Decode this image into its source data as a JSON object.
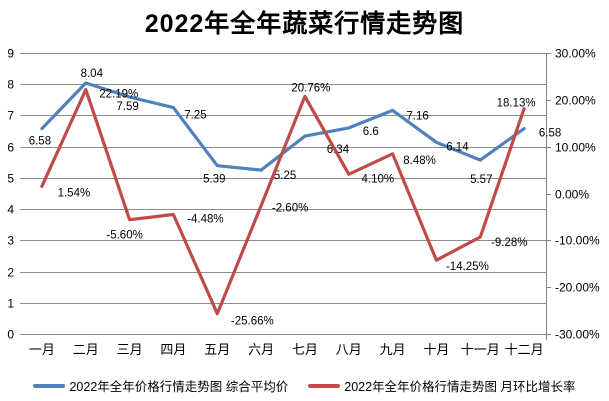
{
  "title": "2022年全年蔬菜行情走势图",
  "colors": {
    "series_price": "#4F81BD",
    "series_growth": "#BE4B48",
    "gridline": "#8C8C8C",
    "axis_line": "#808080",
    "text": "#000000"
  },
  "chart_data": {
    "type": "line",
    "title": "2022年全年蔬菜行情走势图",
    "categories": [
      "一月",
      "二月",
      "三月",
      "四月",
      "五月",
      "六月",
      "七月",
      "八月",
      "九月",
      "十月",
      "十一月",
      "十二月"
    ],
    "left_axis": {
      "min": 0,
      "max": 9,
      "tick_labels": [
        "9",
        "8",
        "7",
        "6",
        "5",
        "4",
        "3",
        "2",
        "1",
        "0"
      ]
    },
    "right_axis": {
      "min": -30,
      "max": 30,
      "tick_labels": [
        "30.00%",
        "20.00%",
        "10.00%",
        "0.00%",
        "-10.00%",
        "-20.00%",
        "-30.00%"
      ]
    },
    "grid": true,
    "legend_position": "bottom",
    "series": [
      {
        "name": "2022年全年价格行情走势图 综合平均价",
        "axis": "left",
        "color": "#4F81BD",
        "values": [
          6.58,
          8.04,
          7.59,
          7.25,
          5.39,
          5.25,
          6.34,
          6.6,
          7.16,
          6.14,
          5.57,
          6.58
        ],
        "labels": [
          "6.58",
          "8.04",
          "7.59",
          "7.25",
          "5.39",
          "5.25",
          "6.34",
          "6.6",
          "7.16",
          "6.14",
          "5.57",
          "6.58"
        ],
        "label_offsets": [
          [
            -2,
            16
          ],
          [
            6,
            -6
          ],
          [
            -2,
            13
          ],
          [
            22,
            11
          ],
          [
            -3,
            17
          ],
          [
            24,
            9
          ],
          [
            33,
            17
          ],
          [
            22,
            7
          ],
          [
            25,
            9
          ],
          [
            21,
            8
          ],
          [
            1,
            23
          ],
          [
            26,
            8
          ]
        ]
      },
      {
        "name": "2022年全年价格行情走势图 月环比增长率",
        "axis": "right",
        "color": "#BE4B48",
        "values": [
          1.54,
          22.19,
          -5.6,
          -4.48,
          -25.66,
          -2.6,
          20.76,
          4.1,
          8.48,
          -14.25,
          -9.28,
          18.13
        ],
        "labels": [
          "1.54%",
          "22.19%",
          "-5.60%",
          "-4.48%",
          "-25.66%",
          "-2.60%",
          "20.76%",
          "4.10%",
          "8.48%",
          "-14.25%",
          "-9.28%",
          "18.13%"
        ],
        "label_offsets": [
          [
            32,
            10
          ],
          [
            33,
            8
          ],
          [
            -5,
            19
          ],
          [
            32,
            8
          ],
          [
            35,
            11
          ],
          [
            29,
            6
          ],
          [
            6,
            -5
          ],
          [
            29,
            8
          ],
          [
            27,
            10
          ],
          [
            31,
            10
          ],
          [
            29,
            9
          ],
          [
            -8,
            -2
          ]
        ]
      }
    ]
  }
}
